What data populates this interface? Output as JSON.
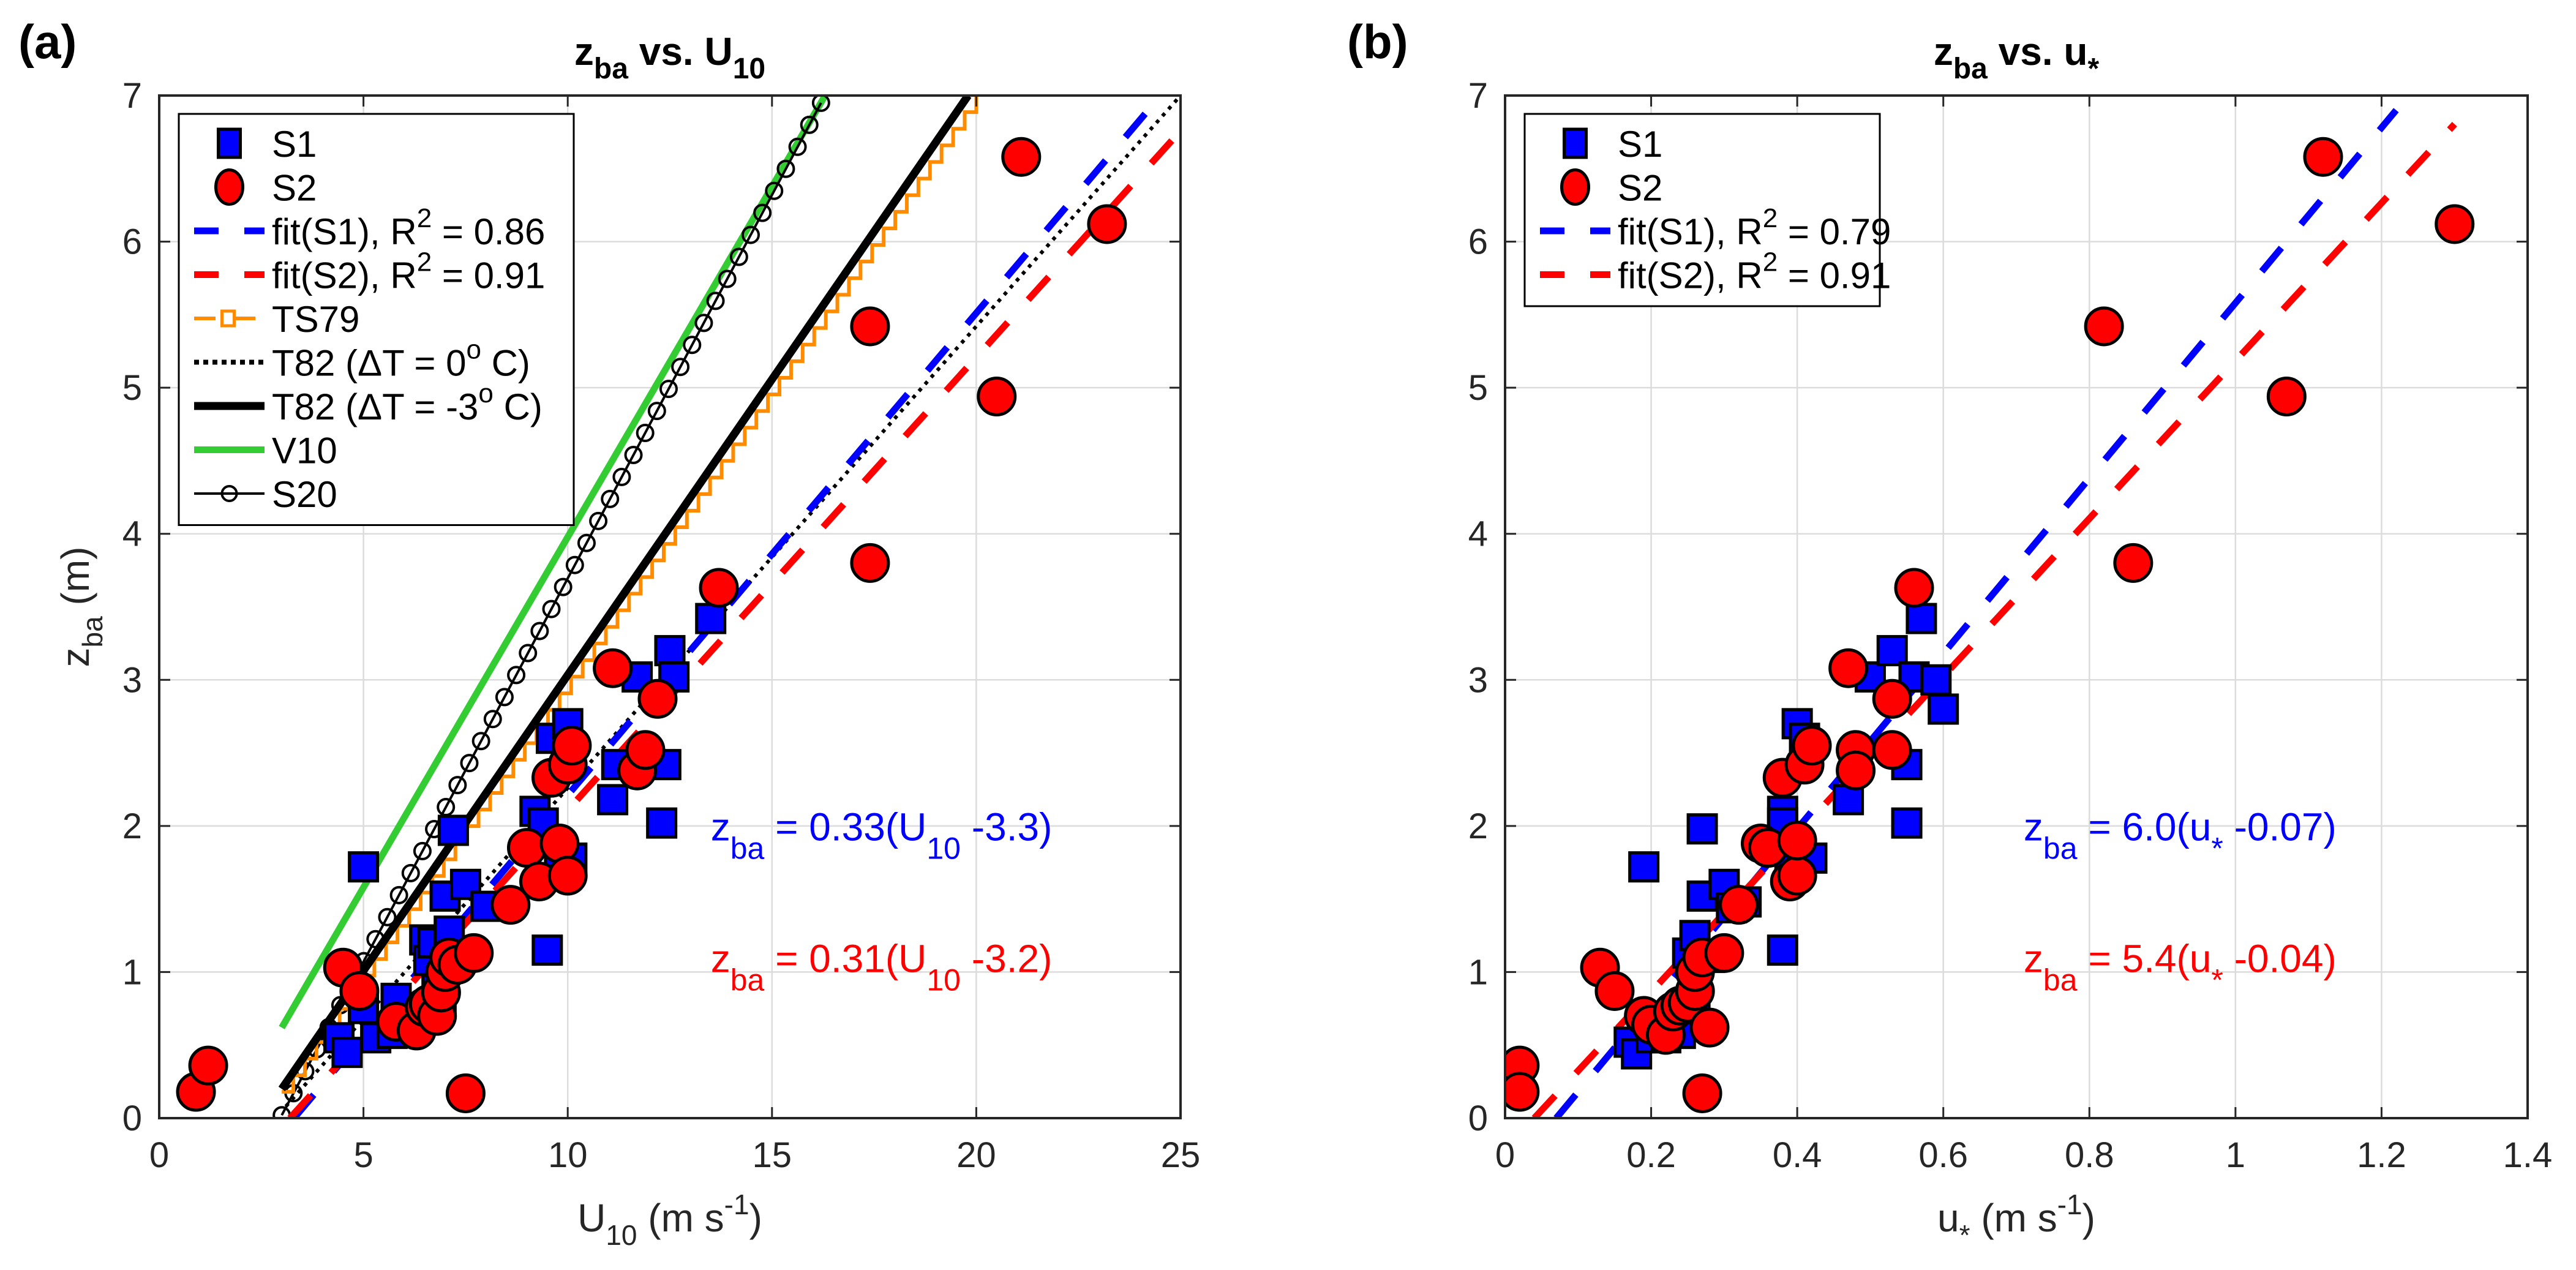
{
  "chart_data": [
    {
      "panel_label": "(a)",
      "type": "scatter",
      "title": {
        "main": "z",
        "sub": "ba",
        "mid": " vs. U",
        "sub2": "10"
      },
      "title_text": "z_ba vs. U_10",
      "xlabel": {
        "main": "U",
        "sub": "10",
        "rest": " (m s",
        "sup": "-1",
        "end": ")"
      },
      "xlabel_text": "U_10 (m s^-1)",
      "ylabel": {
        "main": "z",
        "sub": "ba",
        "rest": " (m)"
      },
      "ylabel_text": "z_ba (m)",
      "xlim": [
        0,
        25
      ],
      "ylim": [
        0,
        7
      ],
      "xticks": [
        0,
        5,
        10,
        15,
        20,
        25
      ],
      "yticks": [
        0,
        1,
        2,
        3,
        4,
        5,
        6,
        7
      ],
      "grid": true,
      "legend_position": "top-left",
      "series": [
        {
          "name": "S1",
          "kind": "marker-square",
          "color": "#0000FF",
          "x": [
            4.4,
            4.6,
            5.0,
            5.0,
            5.3,
            5.7,
            5.8,
            6.5,
            6.6,
            6.7,
            6.8,
            6.9,
            7.0,
            7.1,
            7.2,
            7.5,
            8.0,
            9.2,
            9.4,
            9.5,
            9.6,
            9.8,
            10.0,
            10.1,
            11.1,
            11.2,
            11.7,
            12.3,
            12.4,
            12.5,
            12.6,
            13.5
          ],
          "y": [
            0.55,
            0.45,
            1.72,
            0.75,
            0.55,
            0.58,
            0.82,
            1.22,
            1.08,
            1.2,
            0.88,
            0.82,
            1.52,
            1.28,
            1.97,
            1.6,
            1.45,
            2.1,
            2.02,
            1.15,
            2.6,
            1.82,
            2.7,
            1.78,
            2.18,
            2.42,
            3.02,
            2.02,
            2.42,
            3.2,
            3.02,
            3.42
          ]
        },
        {
          "name": "S2",
          "kind": "marker-circle",
          "color": "#FF0000",
          "x": [
            0.9,
            1.2,
            4.5,
            4.9,
            5.8,
            6.3,
            6.5,
            6.6,
            6.8,
            6.9,
            7.0,
            7.1,
            7.3,
            7.5,
            7.7,
            8.6,
            9.0,
            9.3,
            9.6,
            9.8,
            10.0,
            10.0,
            10.1,
            11.1,
            11.7,
            11.9,
            12.2,
            13.7,
            17.4,
            17.4,
            20.5,
            21.1,
            23.2
          ],
          "y": [
            0.18,
            0.36,
            1.03,
            0.87,
            0.66,
            0.6,
            0.76,
            0.78,
            0.7,
            0.86,
            1.0,
            1.1,
            1.05,
            0.17,
            1.13,
            1.46,
            1.85,
            1.62,
            2.33,
            1.88,
            1.66,
            2.42,
            2.55,
            3.08,
            2.38,
            2.52,
            2.87,
            3.63,
            3.8,
            5.42,
            4.94,
            6.58,
            6.12
          ]
        },
        {
          "name": "fit(S1), R² = 0.86",
          "label": {
            "pre": "fit(S1), R",
            "sup": "2",
            "post": " = 0.86"
          },
          "kind": "dashed",
          "color": "#0000FF",
          "slope": 0.33,
          "x0": 3.3,
          "x_range": [
            3.3,
            24.5
          ]
        },
        {
          "name": "fit(S2), R² = 0.91",
          "label": {
            "pre": "fit(S2), R",
            "sup": "2",
            "post": " = 0.91"
          },
          "kind": "dashed",
          "color": "#FF0000",
          "slope": 0.31,
          "x0": 3.2,
          "x_range": [
            3.2,
            25
          ]
        },
        {
          "name": "TS79",
          "label": {
            "pre": "TS79",
            "sup": "",
            "post": ""
          },
          "kind": "stairs",
          "color": "#FF8C00",
          "points": [
            [
              3.0,
              0.18
            ],
            [
              20.0,
              7.0
            ]
          ]
        },
        {
          "name": "T82 (ΔT = 0° C)",
          "label": {
            "pre": "T82 (ΔT = 0",
            "sup": "o",
            "post": " C)"
          },
          "kind": "dotted",
          "color": "#000000",
          "points": [
            [
              3.1,
              0.08
            ],
            [
              25.0,
              7.0
            ]
          ]
        },
        {
          "name": "T82 (ΔT = -3° C)",
          "label": {
            "pre": "T82 (ΔT = -3",
            "sup": "o",
            "post": " C)"
          },
          "kind": "solid-thick",
          "color": "#000000",
          "points": [
            [
              3.0,
              0.2
            ],
            [
              19.8,
              7.0
            ]
          ]
        },
        {
          "name": "V10",
          "label": {
            "pre": "V10",
            "sup": "",
            "post": ""
          },
          "kind": "solid",
          "color": "#33CC33",
          "points": [
            [
              3.0,
              0.62
            ],
            [
              16.3,
              7.0
            ]
          ]
        },
        {
          "name": "S20",
          "label": {
            "pre": "S20",
            "sup": "",
            "post": ""
          },
          "kind": "line-circles",
          "color": "#000000",
          "points": [
            [
              3.0,
              0.02
            ],
            [
              16.2,
              6.95
            ]
          ],
          "marker_count": 46
        }
      ],
      "annotations": [
        {
          "color": "#0000FF",
          "main": "z",
          "sub": "ba",
          "eq": " = 0.33(U",
          "sub2": "10",
          "end": " -3.3)",
          "at": [
            13.5,
            1.9
          ]
        },
        {
          "color": "#FF0000",
          "main": "z",
          "sub": "ba",
          "eq": " = 0.31(U",
          "sub2": "10",
          "end": " -3.2)",
          "at": [
            13.5,
            1.0
          ]
        }
      ]
    },
    {
      "panel_label": "(b)",
      "type": "scatter",
      "title": {
        "main": "z",
        "sub": "ba",
        "mid": " vs. u",
        "sub2": "*"
      },
      "title_text": "z_ba vs. u_*",
      "xlabel": {
        "main": "u",
        "sub": "*",
        "rest": " (m s",
        "sup": "-1",
        "end": ")"
      },
      "xlabel_text": "u_* (m s^-1)",
      "xlim": [
        0,
        1.4
      ],
      "ylim": [
        0,
        7
      ],
      "xticks": [
        0,
        0.2,
        0.4,
        0.6,
        0.8,
        1,
        1.2,
        1.4
      ],
      "yticks": [
        0,
        1,
        2,
        3,
        4,
        5,
        6,
        7
      ],
      "grid": true,
      "legend_position": "top-left",
      "series": [
        {
          "name": "S1",
          "kind": "marker-square",
          "color": "#0000FF",
          "x": [
            0.17,
            0.18,
            0.19,
            0.2,
            0.22,
            0.24,
            0.25,
            0.26,
            0.26,
            0.27,
            0.27,
            0.28,
            0.3,
            0.31,
            0.33,
            0.38,
            0.38,
            0.38,
            0.39,
            0.4,
            0.41,
            0.42,
            0.47,
            0.48,
            0.5,
            0.53,
            0.55,
            0.55,
            0.56,
            0.57,
            0.59,
            0.6
          ],
          "y": [
            0.52,
            0.44,
            1.72,
            0.55,
            0.55,
            0.58,
            1.13,
            1.25,
            0.75,
            1.98,
            1.52,
            1.1,
            1.6,
            1.44,
            1.48,
            1.15,
            2.1,
            2.02,
            1.8,
            2.7,
            2.6,
            1.78,
            2.18,
            2.42,
            3.02,
            3.2,
            2.02,
            2.42,
            3.02,
            3.42,
            3.0,
            2.8
          ]
        },
        {
          "name": "S2",
          "kind": "marker-circle",
          "color": "#FF0000",
          "x": [
            0.02,
            0.02,
            0.13,
            0.15,
            0.19,
            0.2,
            0.22,
            0.23,
            0.24,
            0.25,
            0.26,
            0.26,
            0.27,
            0.27,
            0.28,
            0.3,
            0.32,
            0.35,
            0.36,
            0.38,
            0.39,
            0.4,
            0.4,
            0.41,
            0.42,
            0.47,
            0.48,
            0.48,
            0.53,
            0.53,
            0.56,
            0.82,
            0.86,
            1.07,
            1.12,
            1.3
          ],
          "y": [
            0.36,
            0.18,
            1.03,
            0.87,
            0.7,
            0.64,
            0.57,
            0.73,
            0.77,
            0.79,
            0.87,
            1.0,
            1.1,
            0.17,
            0.62,
            1.13,
            1.46,
            1.88,
            1.85,
            2.33,
            1.62,
            1.66,
            1.9,
            2.42,
            2.55,
            3.08,
            2.52,
            2.38,
            2.52,
            2.87,
            3.63,
            5.42,
            3.8,
            4.94,
            6.58,
            6.12
          ]
        },
        {
          "name": "fit(S1), R² = 0.79",
          "label": {
            "pre": "fit(S1), R",
            "sup": "2",
            "post": " = 0.79"
          },
          "kind": "dashed",
          "color": "#0000FF",
          "slope": 6.0,
          "x0": 0.07,
          "x_range": [
            0.07,
            1.22
          ]
        },
        {
          "name": "fit(S2), R² = 0.91",
          "label": {
            "pre": "fit(S2), R",
            "sup": "2",
            "post": " = 0.91"
          },
          "kind": "dashed",
          "color": "#FF0000",
          "slope": 5.4,
          "x0": 0.04,
          "x_range": [
            0.04,
            1.3
          ]
        }
      ],
      "annotations": [
        {
          "color": "#0000FF",
          "main": "z",
          "sub": "ba",
          "eq": " = 6.0(u",
          "sub2": "*",
          "end": " -0.07)",
          "at": [
            0.71,
            1.9
          ]
        },
        {
          "color": "#FF0000",
          "main": "z",
          "sub": "ba",
          "eq": " = 5.4(u",
          "sub2": "*",
          "end": " -0.04)",
          "at": [
            0.71,
            1.0
          ]
        }
      ]
    }
  ]
}
